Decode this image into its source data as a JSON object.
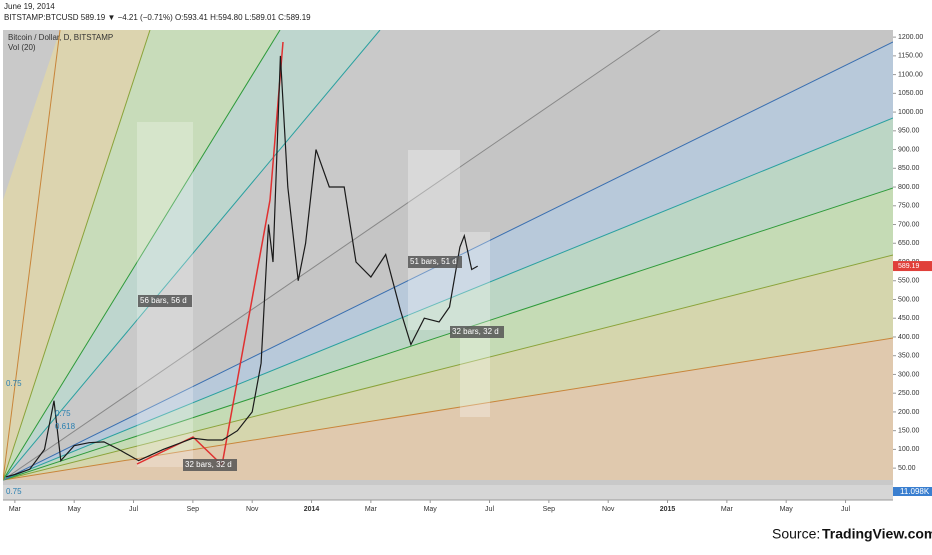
{
  "chart_data": {
    "type": "line",
    "date": "June 19, 2014",
    "symbol_line": "BITSTAMP:BTCUSD 589.19 ▼ −4.21 (−0.71%) O:593.41 H:594.80 L:589.01 C:589.19",
    "title": "Bitcoin / Dollar, D, BITSTAMP",
    "volume_label": "Vol (20)",
    "volume_value_label": "11.098K",
    "source_prefix": "Source:",
    "source": "TradingView.com",
    "annotations": [
      "56 bars, 56 d",
      "51 bars, 51 d",
      "32 bars, 32 d",
      "32 bars, 32 d",
      "0.75",
      "0.75",
      "0.618",
      "0.75"
    ],
    "last_price": 589.19,
    "color": "#1a1a1a",
    "x": [
      1.7,
      2.0,
      2.5,
      3.0,
      3.32,
      3.55,
      4.0,
      4.5,
      5.0,
      5.5,
      6.17,
      7.0,
      8.0,
      8.5,
      9.0,
      9.5,
      10.0,
      10.3,
      10.55,
      10.7,
      10.95,
      11.2,
      11.55,
      11.8,
      12.15,
      12.6,
      13.1,
      13.5,
      14.0,
      14.5,
      15.0,
      15.35,
      15.8,
      16.3,
      16.65,
      17.0,
      17.15,
      17.4,
      17.6
    ],
    "values": [
      27,
      33,
      47,
      100,
      230,
      70,
      110,
      118,
      120,
      100,
      70,
      100,
      130,
      125,
      125,
      150,
      200,
      330,
      700,
      600,
      1150,
      800,
      550,
      650,
      900,
      800,
      800,
      600,
      560,
      620,
      470,
      380,
      450,
      440,
      480,
      640,
      670,
      580,
      589.19
    ],
    "xlim": [
      1.6,
      31.6
    ],
    "xticks": [
      {
        "value": 2,
        "label": "Mar"
      },
      {
        "value": 4,
        "label": "May"
      },
      {
        "value": 6,
        "label": "Jul"
      },
      {
        "value": 8,
        "label": "Sep"
      },
      {
        "value": 10,
        "label": "Nov"
      },
      {
        "value": 12,
        "label": "2014"
      },
      {
        "value": 14,
        "label": "Mar"
      },
      {
        "value": 16,
        "label": "May"
      },
      {
        "value": 18,
        "label": "Jul"
      },
      {
        "value": 20,
        "label": "Sep"
      },
      {
        "value": 22,
        "label": "Nov"
      },
      {
        "value": 24,
        "label": "2015"
      },
      {
        "value": 26,
        "label": "Mar"
      },
      {
        "value": 28,
        "label": "May"
      },
      {
        "value": 30,
        "label": "Jul"
      }
    ],
    "ylim": [
      -35,
      1219
    ],
    "yticks": [
      {
        "value": 50,
        "label": "50.00"
      },
      {
        "value": 100,
        "label": "100.00"
      },
      {
        "value": 150,
        "label": "150.00"
      },
      {
        "value": 200,
        "label": "200.00"
      },
      {
        "value": 250,
        "label": "250.00"
      },
      {
        "value": 300,
        "label": "300.00"
      },
      {
        "value": 350,
        "label": "350.00"
      },
      {
        "value": 400,
        "label": "400.00"
      },
      {
        "value": 450,
        "label": "450.00"
      },
      {
        "value": 500,
        "label": "500.00"
      },
      {
        "value": 550,
        "label": "550.00"
      },
      {
        "value": 600,
        "label": "600.00"
      },
      {
        "value": 650,
        "label": "650.00"
      },
      {
        "value": 700,
        "label": "700.00"
      },
      {
        "value": 750,
        "label": "750.00"
      },
      {
        "value": 800,
        "label": "800.00"
      },
      {
        "value": 850,
        "label": "850.00"
      },
      {
        "value": 900,
        "label": "900.00"
      },
      {
        "value": 950,
        "label": "950.00"
      },
      {
        "value": 1000,
        "label": "1000.00"
      },
      {
        "value": 1050,
        "label": "1050.00"
      },
      {
        "value": 1100,
        "label": "1100.00"
      },
      {
        "value": 1150,
        "label": "1150.00"
      },
      {
        "value": 1200,
        "label": "1200.00"
      }
    ]
  }
}
